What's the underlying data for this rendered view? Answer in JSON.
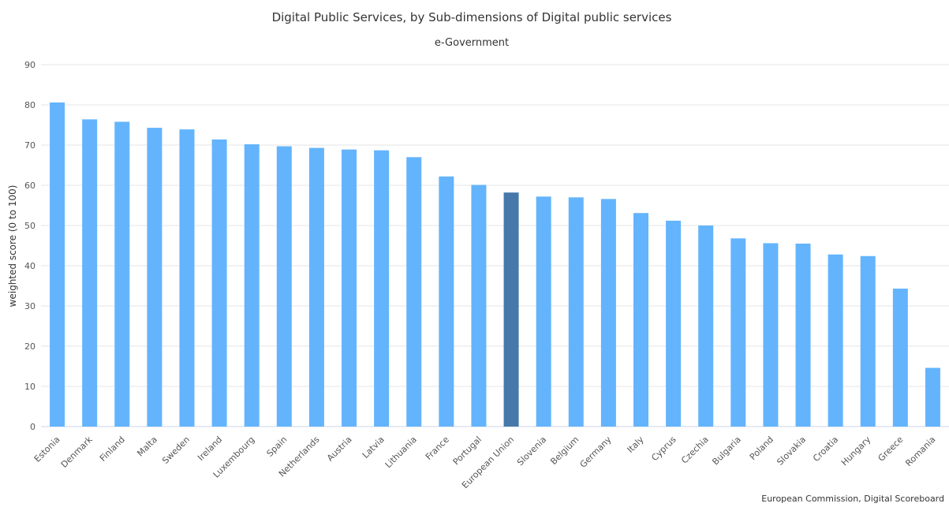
{
  "chart_data": {
    "type": "bar",
    "title": "Digital Public Services, by Sub-dimensions of Digital public services",
    "subtitle": "e-Government",
    "xlabel": "",
    "ylabel": "weighted score (0 to 100)",
    "ylim": [
      0,
      90
    ],
    "yticks": [
      0,
      10,
      20,
      30,
      40,
      50,
      60,
      70,
      80,
      90
    ],
    "grid": true,
    "legend": "none",
    "categories": [
      "Estonia",
      "Denmark",
      "Finland",
      "Malta",
      "Sweden",
      "Ireland",
      "Luxembourg",
      "Spain",
      "Netherlands",
      "Austria",
      "Latvia",
      "Lithuania",
      "France",
      "Portugal",
      "European Union",
      "Slovenia",
      "Belgium",
      "Germany",
      "Italy",
      "Cyprus",
      "Czechia",
      "Bulgaria",
      "Poland",
      "Slovakia",
      "Croatia",
      "Hungary",
      "Greece",
      "Romania"
    ],
    "values": [
      80.6,
      76.4,
      75.8,
      74.3,
      73.9,
      71.4,
      70.2,
      69.7,
      69.3,
      68.9,
      68.7,
      67.0,
      62.2,
      60.1,
      58.2,
      57.2,
      57.0,
      56.6,
      53.1,
      51.2,
      50.0,
      46.8,
      45.6,
      45.5,
      42.8,
      42.4,
      34.3,
      14.6
    ],
    "highlight_category": "European Union",
    "colors": {
      "bar": "#63b4fd",
      "highlight": "#4679a9",
      "grid": "#e6e6e6",
      "baseline": "#ccd6eb"
    }
  },
  "credits": "European Commission, Digital Scoreboard"
}
